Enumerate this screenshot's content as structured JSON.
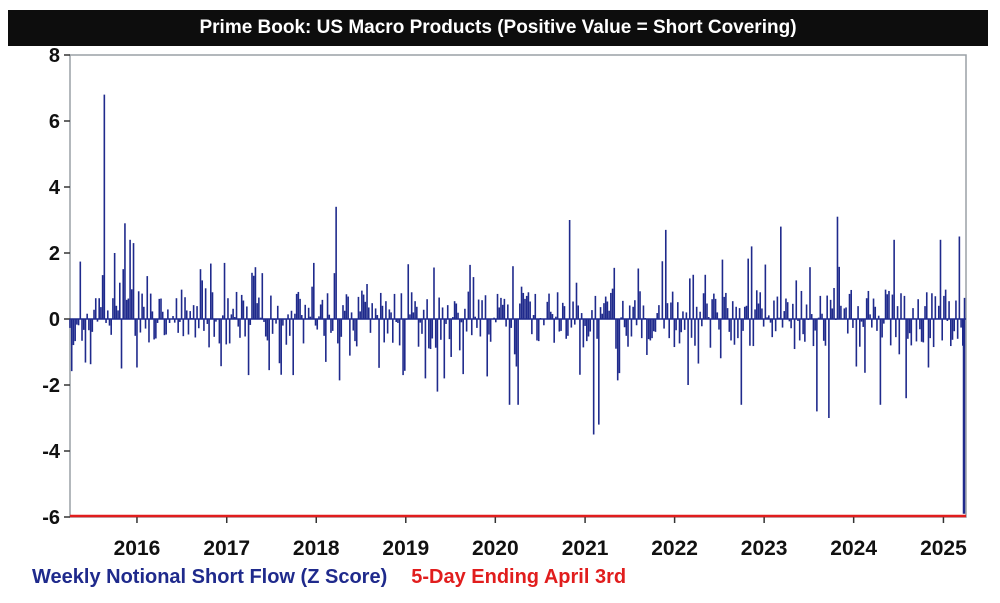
{
  "chart_data": {
    "type": "bar",
    "title": "Prime Book: US Macro Products (Positive Value = Short Covering)",
    "ylim": [
      -6,
      8
    ],
    "yticks": [
      "8",
      "6",
      "4",
      "2",
      "0",
      "-2",
      "-4",
      "-6"
    ],
    "xticks": [
      "2016",
      "2017",
      "2018",
      "2019",
      "2020",
      "2021",
      "2022",
      "2023",
      "2024",
      "2025"
    ],
    "x_start": "2015-04-03",
    "x_end": "2025-04-03",
    "grid": false,
    "legend_position": "bottom-left",
    "series": [
      {
        "name": "Weekly Notional Short Flow (Z Score)",
        "color": "#1f2a8c",
        "frequency": "weekly",
        "highlights": [
          {
            "date": "2015-08-21",
            "value": 6.8
          },
          {
            "date": "2015-10-02",
            "value": 2.0
          },
          {
            "date": "2015-10-30",
            "value": -1.5
          },
          {
            "date": "2015-11-13",
            "value": 2.9
          },
          {
            "date": "2015-12-04",
            "value": 2.4
          },
          {
            "date": "2015-12-18",
            "value": 2.3
          },
          {
            "date": "2016-02-12",
            "value": 1.3
          },
          {
            "date": "2017-04-14",
            "value": 1.4
          },
          {
            "date": "2017-09-29",
            "value": -1.7
          },
          {
            "date": "2018-03-23",
            "value": 3.4
          },
          {
            "date": "2018-02-09",
            "value": -1.3
          },
          {
            "date": "2018-12-21",
            "value": -1.7
          },
          {
            "date": "2019-05-10",
            "value": -2.2
          },
          {
            "date": "2020-02-28",
            "value": -2.6
          },
          {
            "date": "2020-03-13",
            "value": 1.6
          },
          {
            "date": "2020-04-03",
            "value": -2.6
          },
          {
            "date": "2020-10-30",
            "value": 3.0
          },
          {
            "date": "2021-02-05",
            "value": -3.5
          },
          {
            "date": "2021-02-26",
            "value": -3.2
          },
          {
            "date": "2021-11-26",
            "value": 2.7
          },
          {
            "date": "2022-02-25",
            "value": -2.0
          },
          {
            "date": "2022-09-30",
            "value": -2.6
          },
          {
            "date": "2022-11-11",
            "value": 2.2
          },
          {
            "date": "2023-03-10",
            "value": 2.8
          },
          {
            "date": "2023-08-04",
            "value": -2.8
          },
          {
            "date": "2023-10-27",
            "value": 3.1
          },
          {
            "date": "2023-09-22",
            "value": -3.0
          },
          {
            "date": "2024-04-19",
            "value": -2.6
          },
          {
            "date": "2024-06-14",
            "value": 2.4
          },
          {
            "date": "2024-12-20",
            "value": 2.4
          },
          {
            "date": "2024-08-02",
            "value": -2.4
          },
          {
            "date": "2025-03-07",
            "value": 2.5
          }
        ]
      },
      {
        "name": "5-Day Ending April 3rd",
        "color": "#e11d1d",
        "points": [
          {
            "date": "2025-04-03",
            "value": -5.9
          }
        ]
      }
    ]
  }
}
